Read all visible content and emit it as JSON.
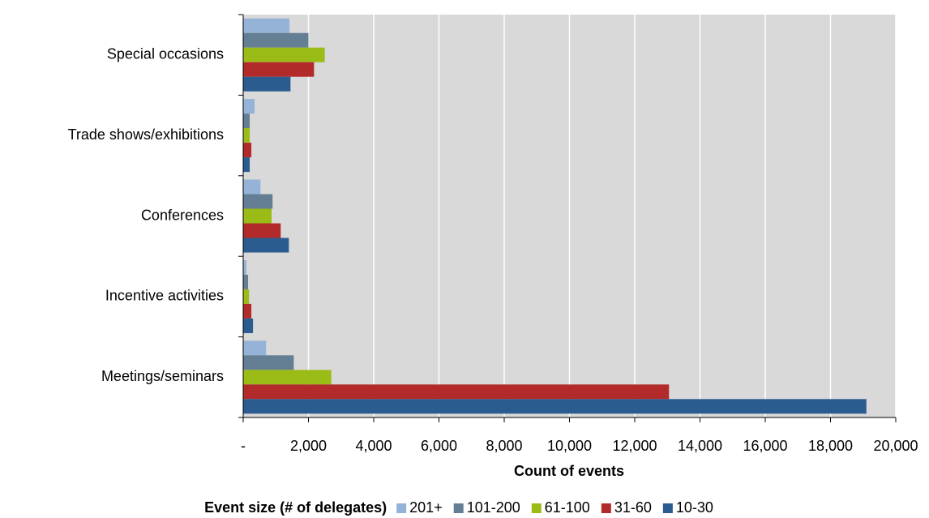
{
  "chart_data": {
    "type": "hbar",
    "categories": [
      "Special occasions",
      "Trade shows/exhibitions",
      "Conferences",
      "Incentive activities",
      "Meetings/seminars"
    ],
    "series": [
      {
        "name": "201+",
        "color": "#95b3d7",
        "values": [
          1420,
          350,
          530,
          100,
          700
        ]
      },
      {
        "name": "101-200",
        "color": "#647f93",
        "values": [
          2000,
          200,
          900,
          150,
          1550
        ]
      },
      {
        "name": "61-100",
        "color": "#9bbb17",
        "values": [
          2500,
          200,
          870,
          180,
          2700
        ]
      },
      {
        "name": "31-60",
        "color": "#b22a2a",
        "values": [
          2170,
          250,
          1150,
          250,
          13050
        ]
      },
      {
        "name": "10-30",
        "color": "#2a5c8f",
        "values": [
          1450,
          200,
          1400,
          300,
          19100
        ]
      }
    ],
    "xlabel": "Count of events",
    "legend_title": "Event size (# of  delegates)",
    "legend": "bottom",
    "grid": true,
    "xlim": [
      0,
      20000
    ],
    "xticks": [
      {
        "value": 0,
        "label": "-"
      },
      {
        "value": 2000,
        "label": "2,000"
      },
      {
        "value": 4000,
        "label": "4,000"
      },
      {
        "value": 6000,
        "label": "6,000"
      },
      {
        "value": 8000,
        "label": "8,000"
      },
      {
        "value": 10000,
        "label": "10,000"
      },
      {
        "value": 12000,
        "label": "12,000"
      },
      {
        "value": 14000,
        "label": "14,000"
      },
      {
        "value": 16000,
        "label": "16,000"
      },
      {
        "value": 18000,
        "label": "18,000"
      },
      {
        "value": 20000,
        "label": "20,000"
      }
    ]
  }
}
